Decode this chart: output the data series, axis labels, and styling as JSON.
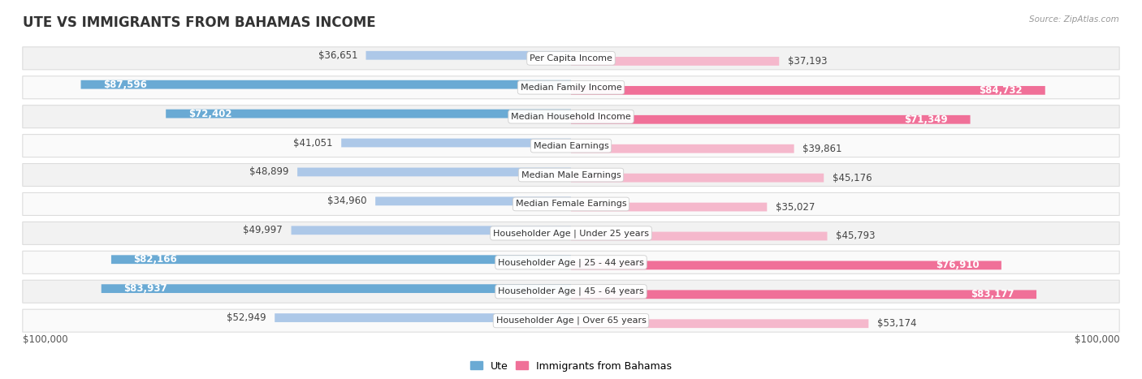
{
  "title": "UTE VS IMMIGRANTS FROM BAHAMAS INCOME",
  "source": "Source: ZipAtlas.com",
  "categories": [
    "Per Capita Income",
    "Median Family Income",
    "Median Household Income",
    "Median Earnings",
    "Median Male Earnings",
    "Median Female Earnings",
    "Householder Age | Under 25 years",
    "Householder Age | 25 - 44 years",
    "Householder Age | 45 - 64 years",
    "Householder Age | Over 65 years"
  ],
  "ute_values": [
    36651,
    87596,
    72402,
    41051,
    48899,
    34960,
    49997,
    82166,
    83937,
    52949
  ],
  "bahamas_values": [
    37193,
    84732,
    71349,
    39861,
    45176,
    35027,
    45793,
    76910,
    83177,
    53174
  ],
  "ute_labels": [
    "$36,651",
    "$87,596",
    "$72,402",
    "$41,051",
    "$48,899",
    "$34,960",
    "$49,997",
    "$82,166",
    "$83,937",
    "$52,949"
  ],
  "bahamas_labels": [
    "$37,193",
    "$84,732",
    "$71,349",
    "$39,861",
    "$45,176",
    "$35,027",
    "$45,793",
    "$76,910",
    "$83,177",
    "$53,174"
  ],
  "ute_color_light": "#adc8e8",
  "ute_color_dark": "#6aaad4",
  "bahamas_color_light": "#f5b8cc",
  "bahamas_color_dark": "#f07098",
  "max_value": 100000,
  "background_color": "#ffffff",
  "row_bg_even": "#f2f2f2",
  "row_bg_odd": "#fafafa",
  "label_fontsize": 8.5,
  "title_fontsize": 12,
  "category_fontsize": 8,
  "large_threshold": 0.6,
  "legend_ute_color": "#6aaad4",
  "legend_bahamas_color": "#f07098"
}
